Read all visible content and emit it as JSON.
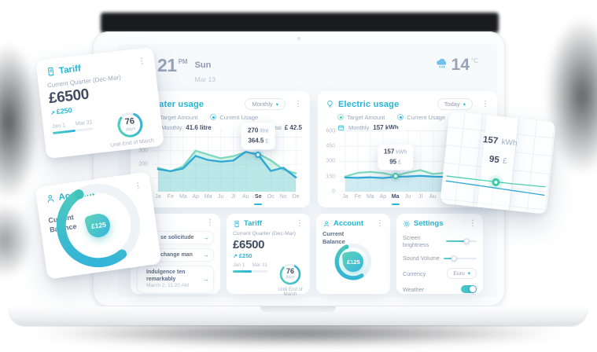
{
  "topbar": {
    "time": "21",
    "meridiem": "PM",
    "day": "Sun",
    "date": "Mar 13",
    "temperature": "14",
    "temperature_unit": "°C"
  },
  "icons": {
    "chevron_down": "▾",
    "kebab": "⋮",
    "arrow_right": "→",
    "increase_arrow": "↗"
  },
  "water_panel": {
    "title": "Water usage",
    "range": "Monthly",
    "legend": [
      "Target Amount",
      "Current Usage"
    ],
    "period_label": "Monthly",
    "period_value": "41.6 litre",
    "total_label": "Total",
    "total_value": "£ 42.5",
    "tooltip": {
      "value": "270",
      "unit": "litre",
      "cost": "364.5",
      "cost_unit": "£"
    }
  },
  "electric_panel": {
    "title": "Electric usage",
    "range": "Today",
    "legend": [
      "Target Amount",
      "Current Usage"
    ],
    "period_label": "Monthly",
    "period_value": "157 kWh",
    "tooltip": {
      "value": "157",
      "unit": "kWh",
      "cost": "95",
      "cost_unit": "£"
    }
  },
  "notifications": {
    "items": [
      {
        "text": "se solicitude"
      },
      {
        "text": "change man"
      },
      {
        "text": "Indulgence ten remarkably",
        "time": "March 2, 11.20 AM"
      }
    ]
  },
  "tariff": {
    "title": "Tariff",
    "subtitle": "Current Quarter (Dec-Mar)",
    "amount": "£6500",
    "delta": "£250",
    "period_start": "Jan 1",
    "period_end": "Mar 31",
    "progress_pct": 55,
    "days_value": "76",
    "days_unit": "days",
    "ring_pct": 79,
    "footnote": "Until End of March"
  },
  "account": {
    "title": "Account",
    "balance_label_1": "Current",
    "balance_label_2": "Balance",
    "balance": "£125",
    "ring_pct": 52
  },
  "settings": {
    "title": "Settings",
    "brightness_label": "Screen brightness",
    "brightness_pct": 68,
    "volume_label": "Sound Volume",
    "volume_pct": 30,
    "currency_label": "Currency",
    "currency_value": "Euro",
    "weather_label": "Weather",
    "weather_on": true
  },
  "float_chart_card": {
    "value": "157",
    "unit": "kWh",
    "cost": "95",
    "cost_unit": "£"
  },
  "colors": {
    "accent": "#24b7d3",
    "mint": "#7fd9bd",
    "blue": "#2fa8d8",
    "dark_text": "#3f4c61",
    "gray_text": "#9aa8bb"
  },
  "chart_data": [
    {
      "type": "line",
      "title": "Water usage",
      "x": [
        "Ja",
        "Fe",
        "Ma",
        "Ap",
        "Ma",
        "Ju",
        "Jl",
        "Au",
        "Se",
        "Oc",
        "No",
        "De"
      ],
      "ylim": [
        0,
        460
      ],
      "yticks": [
        400,
        300,
        200,
        100
      ],
      "selected": 8,
      "marker_series": 1,
      "marker_color": "#2fa8d8",
      "series": [
        {
          "name": "Target Amount",
          "color": "#7fd9bd",
          "fill": 0.32,
          "values": [
            175,
            150,
            185,
            300,
            272,
            245,
            260,
            290,
            278,
            230,
            162,
            135
          ]
        },
        {
          "name": "Current Usage",
          "color": "#2fa8d8",
          "fill": 0.16,
          "values": [
            165,
            150,
            170,
            262,
            232,
            220,
            228,
            292,
            270,
            152,
            176,
            105
          ]
        }
      ],
      "tooltip_text": "270 litre / 364.5 £",
      "legend_position": "top"
    },
    {
      "type": "line",
      "title": "Electric usage",
      "x": [
        "Ja",
        "Fe",
        "Ma",
        "Ap",
        "Ma",
        "Ju",
        "Jl",
        "Au",
        "Se",
        "Oc",
        "No",
        "De"
      ],
      "ylim": [
        0,
        620
      ],
      "yticks": [
        600,
        450,
        300,
        150,
        0
      ],
      "selected": 4,
      "marker_series": 0,
      "marker_color": "#45cba4",
      "series": [
        {
          "name": "Target Amount",
          "color": "#7fd9bd",
          "fill": 0.12,
          "values": [
            150,
            186,
            196,
            184,
            157,
            190,
            213,
            175,
            186,
            160,
            172,
            157
          ]
        },
        {
          "name": "Current Usage",
          "color": "#2fa8d8",
          "fill": 0.16,
          "values": [
            140,
            137,
            142,
            135,
            147,
            150,
            157,
            149,
            146,
            150,
            145,
            148
          ]
        }
      ],
      "tooltip_text": "157 kWh / 95 £",
      "legend_position": "top"
    },
    {
      "type": "line",
      "title": "Electric usage zoom",
      "x": [
        "1",
        "2",
        "3",
        "4",
        "5",
        "6",
        "7"
      ],
      "ylim": [
        0,
        300
      ],
      "yticks": null,
      "grid": false,
      "show_x": false,
      "selected": 3,
      "marker_series": 0,
      "marker_color": "#3cc9a6",
      "series": [
        {
          "name": "Target Amount",
          "color": "#4fcfae",
          "fill": 0,
          "values": [
            162,
            160,
            158,
            157,
            155,
            157,
            158
          ]
        },
        {
          "name": "Current Usage",
          "color": "#2fa8d8",
          "fill": 0,
          "values": [
            122,
            117,
            112,
            107,
            101,
            96,
            90
          ]
        }
      ]
    }
  ]
}
